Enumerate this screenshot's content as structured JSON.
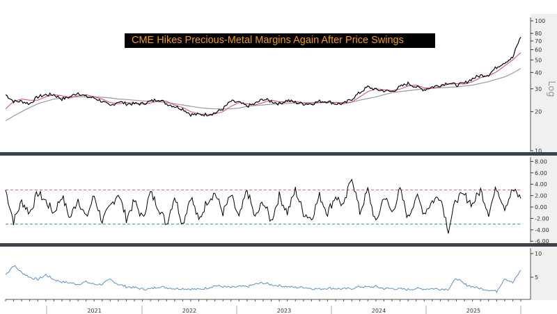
{
  "title": "CME Hikes Precious-Metal Margins Again After Price Swings",
  "colors": {
    "price": "#000000",
    "fast_ma": "#d9455f",
    "slow_ma": "#9a9a9a",
    "upper_band": "#e06070",
    "lower_band": "#3a9a4a",
    "volatility": "#5b8fc9",
    "title_bg": "#000000",
    "title_text": "#f29a1d",
    "separator": "#3c434a"
  },
  "chart_data": [
    {
      "type": "line",
      "panel": "price",
      "scale": "log",
      "axis_label": "Log",
      "ylim": [
        10,
        100
      ],
      "yticks": [
        "10",
        "20",
        "30",
        "40",
        "50",
        "60",
        "70",
        "80",
        "100"
      ],
      "x_start": "2020-08",
      "x_end": "2025-12",
      "x_step": "month",
      "series": [
        {
          "values": [
            27,
            24,
            24,
            23,
            26,
            27,
            27,
            25,
            26,
            28,
            26,
            25.5,
            24,
            22,
            24,
            23,
            23,
            23,
            24,
            25,
            23,
            22,
            21,
            19,
            19,
            19,
            19.5,
            21,
            24,
            23.5,
            22,
            23,
            25,
            24,
            23,
            24.5,
            23.5,
            23,
            23,
            24,
            24,
            23,
            23,
            25,
            28,
            31,
            29.5,
            29,
            28.5,
            31,
            33,
            31,
            29.5,
            31,
            32,
            33.5,
            32,
            33,
            36,
            38,
            38.5,
            44,
            48,
            52,
            75
          ]
        },
        {
          "values": [
            21,
            24,
            25,
            24.5,
            24.5,
            26,
            27,
            26.5,
            25.5,
            26.5,
            27,
            26,
            25,
            23.5,
            23,
            23.5,
            23.2,
            23,
            23.3,
            24.2,
            24,
            22.5,
            21.5,
            20,
            19.2,
            19,
            19.2,
            20,
            22,
            23.5,
            23,
            22.5,
            23.5,
            24.5,
            23.8,
            23.8,
            24,
            23.3,
            23,
            23.5,
            23.8,
            23.5,
            23,
            23.7,
            26,
            28.5,
            30,
            29.5,
            29,
            29.8,
            31.5,
            32,
            30.5,
            30.2,
            31.2,
            32.5,
            32.8,
            32.6,
            34,
            36.5,
            37.8,
            40.5,
            45,
            50,
            57
          ]
        },
        {
          "values": [
            17,
            18.5,
            20,
            21.5,
            23,
            24,
            25,
            25.5,
            26,
            26,
            26,
            26,
            25.8,
            25.5,
            25,
            24.8,
            24.5,
            24.2,
            24,
            23.8,
            23.5,
            23,
            22.5,
            22,
            21.5,
            21.2,
            21,
            21,
            21,
            21.3,
            22,
            22.3,
            22.5,
            22.8,
            23,
            23.2,
            23.3,
            23.4,
            23.5,
            23.5,
            23.5,
            23.5,
            23.5,
            23.7,
            24.5,
            25.2,
            26,
            27,
            28,
            28.5,
            29,
            29.5,
            30,
            30.2,
            30.5,
            30.8,
            31,
            31.5,
            32,
            33,
            34,
            35.5,
            37,
            39.5,
            43
          ]
        }
      ]
    },
    {
      "type": "line",
      "panel": "oscillator",
      "ylim": [
        -6,
        8
      ],
      "yticks": [
        "8.00",
        "6.00",
        "4.00",
        "2.00",
        "0.00",
        "-2.00",
        "-4.00",
        "-6.00"
      ],
      "reference_lines": [
        3,
        -3
      ],
      "series": [
        {
          "values": [
            3,
            -2.5,
            1,
            -1,
            2.5,
            1,
            -1,
            2,
            -2,
            1.5,
            -2,
            2,
            -2.5,
            0,
            2.5,
            -2,
            1,
            -2,
            2.5,
            0,
            -3,
            2,
            -3,
            2,
            -2.5,
            1,
            2.5,
            -1,
            2,
            -2,
            3,
            -2,
            1,
            -2.5,
            2,
            -1,
            3,
            -1,
            -2,
            2,
            -1,
            2,
            0,
            5.5,
            -1,
            3,
            -3,
            2,
            -1,
            3,
            -2,
            2,
            -1,
            1,
            2,
            -4,
            1.5,
            2,
            0.5,
            3,
            -1,
            3.5,
            0,
            3,
            1.5
          ]
        }
      ]
    },
    {
      "type": "line",
      "panel": "volatility",
      "ylim": [
        0,
        12
      ],
      "yticks": [
        "10",
        "5"
      ],
      "xticks": [
        "2021",
        "2022",
        "2023",
        "2024",
        "2025"
      ],
      "series": [
        {
          "values": [
            5.5,
            7.5,
            6,
            5,
            4.5,
            5.5,
            4.5,
            4,
            3.8,
            3.5,
            4,
            3.5,
            3.5,
            4.5,
            3.5,
            3,
            2.8,
            2.5,
            2.5,
            3,
            2.8,
            2.6,
            2.6,
            2.5,
            2.4,
            2.7,
            3.2,
            3,
            2.8,
            3,
            3,
            3.5,
            3.8,
            3.4,
            3.2,
            3,
            2.8,
            2.9,
            2.6,
            2.5,
            2.7,
            2.6,
            2.5,
            2.6,
            3,
            2.9,
            3,
            2.6,
            2.6,
            2.5,
            2.4,
            2.6,
            2.5,
            2.6,
            2.5,
            2.5,
            4.8,
            3.5,
            3,
            2.6,
            2.3,
            2,
            4.8,
            3.8,
            6.5
          ]
        }
      ]
    }
  ]
}
